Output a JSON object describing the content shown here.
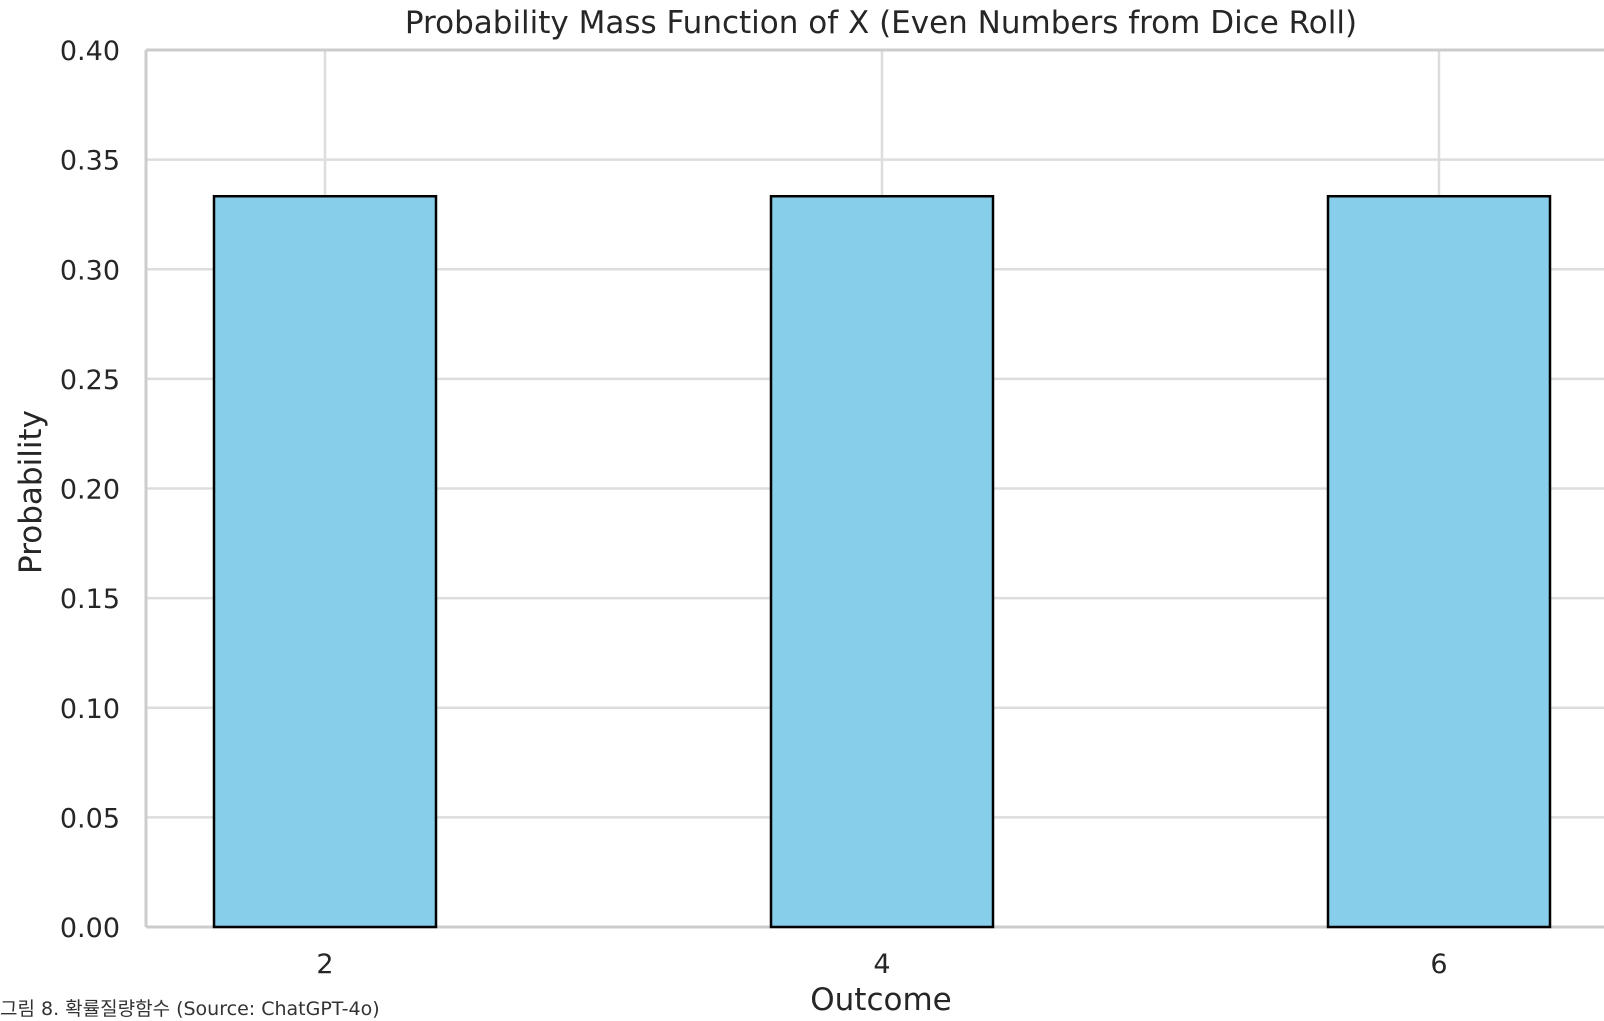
{
  "caption": "그림 8. 확률질량함수 (Source: ChatGPT-4o)",
  "chart_data": {
    "type": "bar",
    "title": "Probability Mass Function of X (Even Numbers from Dice Roll)",
    "xlabel": "Outcome",
    "ylabel": "Probability",
    "categories": [
      "2",
      "4",
      "6"
    ],
    "values": [
      0.3333,
      0.3333,
      0.3333
    ],
    "ylim": [
      0,
      0.4
    ],
    "yticks": [
      "0.00",
      "0.05",
      "0.10",
      "0.15",
      "0.20",
      "0.25",
      "0.30",
      "0.35",
      "0.40"
    ],
    "grid": true,
    "legend": "none",
    "colors": {
      "bar_fill": "#87CEEB",
      "bar_edge": "#000000",
      "grid": "#dddddd",
      "axis": "#cccccc"
    }
  }
}
